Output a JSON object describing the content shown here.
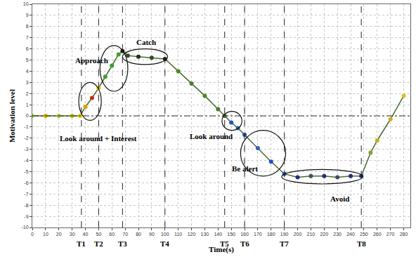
{
  "chart_data": {
    "type": "line",
    "x_label": "Time(s)",
    "y_label": "Motivation level",
    "x": [
      0,
      10,
      20,
      30,
      36,
      40,
      45,
      50,
      55,
      60,
      65,
      68,
      72,
      80,
      90,
      100,
      110,
      120,
      130,
      140,
      145,
      150,
      155,
      160,
      170,
      180,
      190,
      200,
      210,
      220,
      230,
      240,
      248,
      255,
      260,
      270,
      280
    ],
    "series": [
      {
        "name": "Motivation level",
        "color": "#4a6a30",
        "marker": "circle",
        "values": [
          0,
          0,
          0,
          0,
          0,
          0.8,
          1.6,
          2.5,
          3.5,
          4.5,
          5.5,
          5.8,
          5.4,
          5.3,
          5.2,
          5.1,
          4.0,
          2.9,
          1.8,
          0.6,
          0.0,
          -0.6,
          -1.1,
          -1.7,
          -2.9,
          -4.1,
          -5.2,
          -5.5,
          -5.4,
          -5.4,
          -5.5,
          -5.4,
          -5.4,
          -3.3,
          -2.2,
          -0.3,
          1.8
        ],
        "colors": [
          "#9acd32",
          "#c8b400",
          "#9acd32",
          "#c8b400",
          "#e6c800",
          "#e0a000",
          "#c03020",
          "#e0c000",
          "#40a030",
          "#30a030",
          "#40a030",
          "#202020",
          "#305020",
          "#203020",
          "#305020",
          "#202020",
          "#4a8a20",
          "#507a30",
          "#4a8a20",
          "#507a30",
          "#3a6a40",
          "#2050c0",
          "#3060b0",
          "#2050c0",
          "#3060b0",
          "#2050c0",
          "#3060b0",
          "#203080",
          "#405060",
          "#203080",
          "#405060",
          "#203080",
          "#203080",
          "#8aa030",
          "#c0b020",
          "#d0b020",
          "#e0c020"
        ]
      }
    ],
    "xlim": [
      0,
      285
    ],
    "xticks": [
      0,
      10,
      20,
      30,
      40,
      50,
      60,
      70,
      80,
      90,
      100,
      110,
      120,
      130,
      140,
      150,
      160,
      170,
      180,
      190,
      200,
      210,
      220,
      230,
      240,
      250,
      260,
      270,
      280
    ],
    "ylim": [
      -10,
      10
    ],
    "yticks": [
      -10,
      -9,
      -8,
      -7,
      -6,
      -5,
      -4,
      -3,
      -2,
      -1,
      0,
      1,
      2,
      3,
      4,
      5,
      6,
      7,
      8,
      9,
      10
    ],
    "grid": true,
    "time_marks": [
      {
        "value": 37,
        "label": "T1"
      },
      {
        "value": 50,
        "label": "T2"
      },
      {
        "value": 68,
        "label": "T3"
      },
      {
        "value": 100,
        "label": "T4"
      },
      {
        "value": 145,
        "label": "T5"
      },
      {
        "value": 160,
        "label": "T6"
      },
      {
        "value": 190,
        "label": "T7"
      },
      {
        "value": 248,
        "label": "T8"
      }
    ],
    "annotations": [
      {
        "text": "Approach",
        "x": 45,
        "y": 5.0,
        "region": [
          35,
          52,
          -0.4,
          3.0
        ]
      },
      {
        "text": "Catch",
        "x": 86,
        "y": 6.6,
        "region": [
          68,
          102,
          4.6,
          6.0
        ]
      },
      {
        "text": "Look around + Interest",
        "x": 50,
        "y": -2.0,
        "region": [
          51,
          72,
          2.2,
          6.3
        ]
      },
      {
        "text": "Look around",
        "x": 135,
        "y": -1.8,
        "region": [
          143,
          158,
          -1.3,
          0.4
        ]
      },
      {
        "text": "Be alert",
        "x": 160,
        "y": -4.7,
        "region": [
          157,
          191,
          -5.4,
          -1.3
        ]
      },
      {
        "text": "Avoid",
        "x": 232,
        "y": -7.4,
        "region": [
          188,
          249,
          -6.1,
          -4.8
        ]
      }
    ]
  }
}
